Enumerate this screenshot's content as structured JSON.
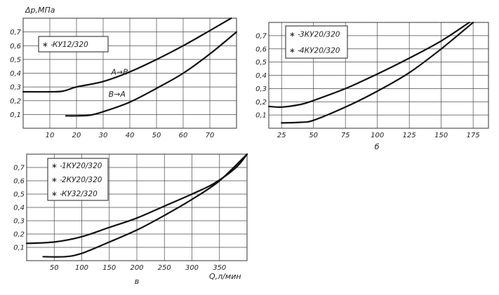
{
  "chart_data": [
    {
      "id": "a",
      "type": "line",
      "ylabel": "Δр,МПа",
      "xlabel": "",
      "caption": "",
      "xlim": [
        0,
        80
      ],
      "ylim": [
        0,
        0.8
      ],
      "x_ticks": [
        10,
        20,
        30,
        40,
        50,
        60,
        70
      ],
      "x_tick_labels": [
        "10",
        "20",
        "30",
        "40",
        "50",
        "60",
        "70"
      ],
      "y_ticks": [
        0.1,
        0.2,
        0.3,
        0.4,
        0.5,
        0.6,
        0.7
      ],
      "y_tick_labels": [
        "0,1",
        "0,2",
        "0,3",
        "0,4",
        "0,5",
        "0,6",
        "0,7"
      ],
      "grid": true,
      "legend": {
        "placement": "top-left",
        "entries": [
          "КУ12/320"
        ]
      },
      "series": [
        {
          "name": "",
          "marker_label": "A→B",
          "label_at": [
            33,
            0.39
          ],
          "x": [
            0,
            10,
            15,
            20,
            30,
            40,
            50,
            60,
            70,
            78
          ],
          "y": [
            0.265,
            0.265,
            0.27,
            0.3,
            0.34,
            0.41,
            0.5,
            0.6,
            0.71,
            0.8
          ]
        },
        {
          "name": "",
          "marker_label": "B→A",
          "label_at": [
            32,
            0.23
          ],
          "x": [
            16,
            20,
            25,
            30,
            40,
            50,
            60,
            70,
            80
          ],
          "y": [
            0.09,
            0.09,
            0.095,
            0.12,
            0.19,
            0.29,
            0.4,
            0.54,
            0.7
          ]
        }
      ]
    },
    {
      "id": "b",
      "type": "line",
      "ylabel": "",
      "xlabel": "",
      "caption": "б",
      "xlim": [
        15,
        187
      ],
      "ylim": [
        0,
        0.8
      ],
      "x_ticks": [
        25,
        50,
        75,
        100,
        125,
        150,
        175
      ],
      "x_tick_labels": [
        "25",
        "50",
        "75",
        "100",
        "125",
        "150",
        "175"
      ],
      "y_ticks": [
        0.1,
        0.2,
        0.3,
        0.4,
        0.5,
        0.6,
        0.7
      ],
      "y_tick_labels": [
        "0,1",
        "0,2",
        "0,3",
        "0,4",
        "0,5",
        "0,6",
        "0,7"
      ],
      "grid": true,
      "legend": {
        "placement": "top-left",
        "entries": [
          "3КУ20/320",
          "4КУ20/320"
        ]
      },
      "series": [
        {
          "name": "",
          "x": [
            15,
            25,
            40,
            50,
            75,
            100,
            125,
            150,
            172
          ],
          "y": [
            0.165,
            0.16,
            0.18,
            0.21,
            0.3,
            0.41,
            0.53,
            0.66,
            0.8
          ]
        },
        {
          "name": "",
          "x": [
            25,
            40,
            50,
            75,
            100,
            125,
            150,
            175
          ],
          "y": [
            0.04,
            0.045,
            0.06,
            0.16,
            0.28,
            0.42,
            0.6,
            0.8
          ]
        }
      ]
    },
    {
      "id": "c",
      "type": "line",
      "ylabel": "",
      "xlabel": "Q,л/мин",
      "caption": "в",
      "xlim": [
        0,
        400
      ],
      "ylim": [
        0,
        0.8
      ],
      "x_ticks": [
        50,
        100,
        150,
        200,
        250,
        300,
        350
      ],
      "x_tick_labels": [
        "50",
        "100",
        "150",
        "200",
        "250",
        "300",
        "350"
      ],
      "y_ticks": [
        0.1,
        0.2,
        0.3,
        0.4,
        0.5,
        0.6,
        0.7
      ],
      "y_tick_labels": [
        "0,1",
        "0,2",
        "0,3",
        "0,4",
        "0,5",
        "0,6",
        "0,7"
      ],
      "grid": true,
      "legend": {
        "placement": "top-left",
        "entries": [
          "1КУ20/320",
          "2КУ20/320",
          "КУ32/320"
        ]
      },
      "series": [
        {
          "name": "",
          "x": [
            0,
            50,
            100,
            150,
            200,
            250,
            300,
            340,
            380,
            400
          ],
          "y": [
            0.13,
            0.14,
            0.18,
            0.25,
            0.32,
            0.41,
            0.5,
            0.58,
            0.7,
            0.8
          ]
        },
        {
          "name": "",
          "x": [
            30,
            70,
            100,
            150,
            200,
            250,
            300,
            350,
            400
          ],
          "y": [
            0.03,
            0.03,
            0.055,
            0.14,
            0.23,
            0.34,
            0.46,
            0.6,
            0.8
          ]
        }
      ]
    }
  ]
}
